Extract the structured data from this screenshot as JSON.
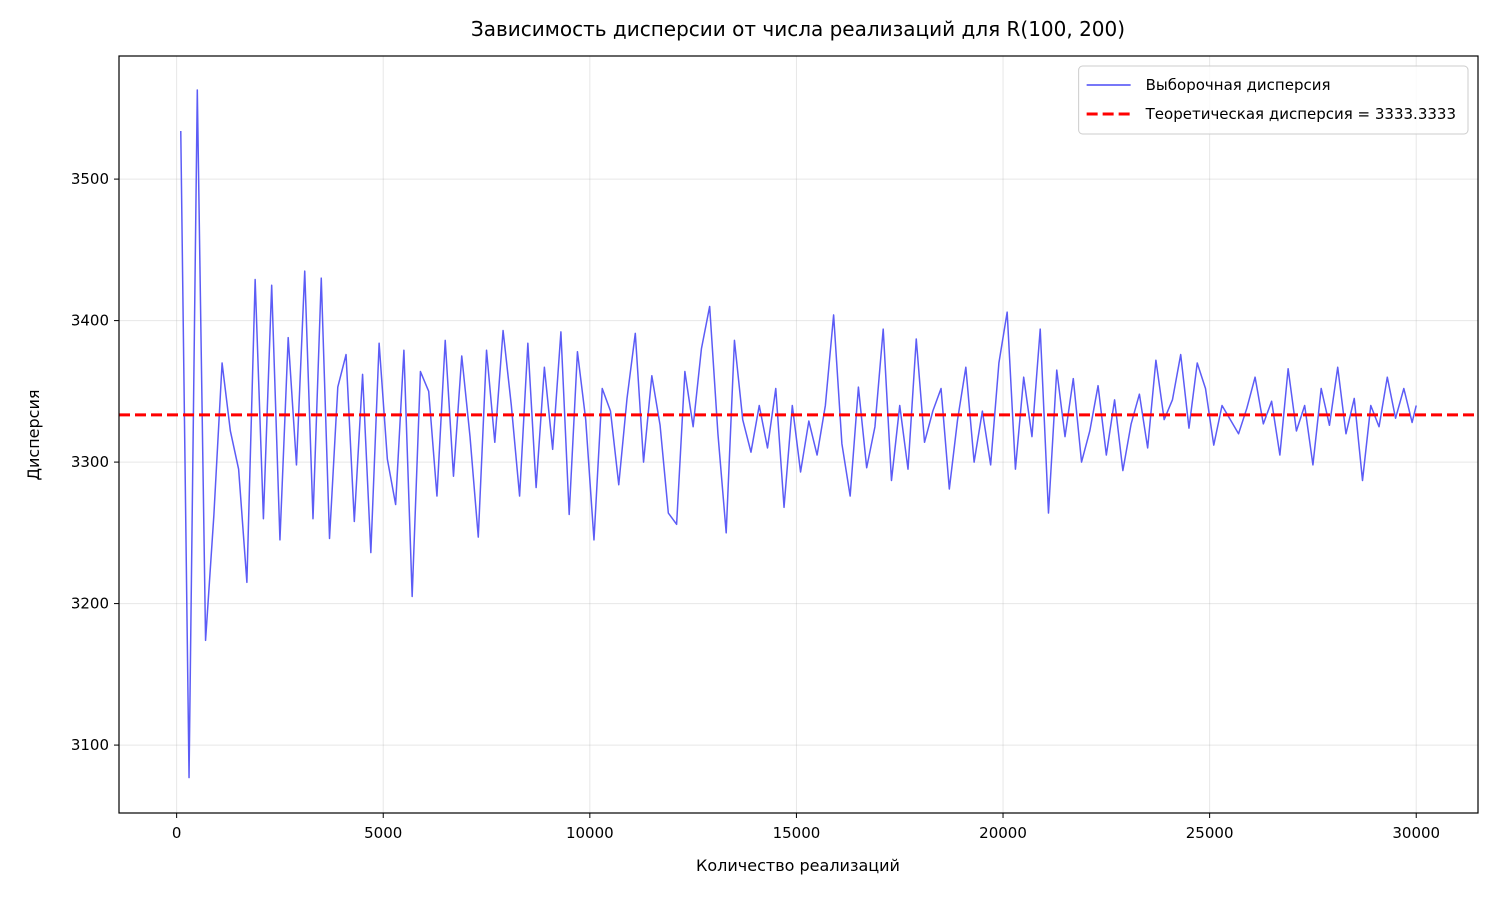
{
  "chart_data": {
    "type": "line",
    "title": "Зависимость дисперсии от числа реализаций для R(100, 200)",
    "x_label": "Количество реализаций",
    "y_label": "Дисперсия",
    "x": [
      100,
      300,
      500,
      700,
      900,
      1100,
      1300,
      1500,
      1700,
      1900,
      2100,
      2300,
      2500,
      2700,
      2900,
      3100,
      3300,
      3500,
      3700,
      3900,
      4100,
      4300,
      4500,
      4700,
      4900,
      5100,
      5300,
      5500,
      5700,
      5900,
      6100,
      6300,
      6500,
      6700,
      6900,
      7100,
      7300,
      7500,
      7700,
      7900,
      8100,
      8300,
      8500,
      8700,
      8900,
      9100,
      9300,
      9500,
      9700,
      9900,
      10100,
      10300,
      10500,
      10700,
      10900,
      11100,
      11300,
      11500,
      11700,
      11900,
      12100,
      12300,
      12500,
      12700,
      12900,
      13100,
      13300,
      13500,
      13700,
      13900,
      14100,
      14300,
      14500,
      14700,
      14900,
      15100,
      15300,
      15500,
      15700,
      15900,
      16100,
      16300,
      16500,
      16700,
      16900,
      17100,
      17300,
      17500,
      17700,
      17900,
      18100,
      18300,
      18500,
      18700,
      18900,
      19100,
      19300,
      19500,
      19700,
      19900,
      20100,
      20300,
      20500,
      20700,
      20900,
      21100,
      21300,
      21500,
      21700,
      21900,
      22100,
      22300,
      22500,
      22700,
      22900,
      23100,
      23300,
      23500,
      23700,
      23900,
      24100,
      24300,
      24500,
      24700,
      24900,
      25100,
      25300,
      25500,
      25700,
      25900,
      26100,
      26300,
      26500,
      26700,
      26900,
      27100,
      27300,
      27500,
      27700,
      27900,
      28100,
      28300,
      28500,
      28700,
      28900,
      29100,
      29300,
      29500,
      29700,
      29900,
      30000
    ],
    "series": [
      {
        "name": "Выборочная дисперсия",
        "color": "#4a4af5",
        "values": [
          3534,
          3077,
          3563,
          3174,
          3262,
          3370,
          3322,
          3295,
          3215,
          3429,
          3260,
          3425,
          3245,
          3388,
          3298,
          3435,
          3260,
          3430,
          3246,
          3353,
          3376,
          3258,
          3362,
          3236,
          3384,
          3302,
          3270,
          3379,
          3205,
          3364,
          3350,
          3276,
          3386,
          3290,
          3375,
          3318,
          3247,
          3379,
          3314,
          3393,
          3340,
          3276,
          3384,
          3282,
          3367,
          3309,
          3392,
          3263,
          3378,
          3330,
          3245,
          3352,
          3336,
          3284,
          3345,
          3391,
          3300,
          3361,
          3326,
          3264,
          3256,
          3364,
          3325,
          3380,
          3410,
          3320,
          3250,
          3386,
          3330,
          3307,
          3340,
          3310,
          3352,
          3268,
          3340,
          3293,
          3329,
          3305,
          3340,
          3404,
          3313,
          3276,
          3353,
          3296,
          3325,
          3394,
          3287,
          3340,
          3295,
          3387,
          3314,
          3336,
          3352,
          3281,
          3330,
          3367,
          3300,
          3336,
          3298,
          3370,
          3406,
          3295,
          3360,
          3318,
          3394,
          3264,
          3365,
          3318,
          3359,
          3300,
          3322,
          3354,
          3305,
          3344,
          3294,
          3327,
          3348,
          3310,
          3372,
          3330,
          3344,
          3376,
          3324,
          3370,
          3352,
          3312,
          3340,
          3330,
          3320,
          3338,
          3360,
          3327,
          3343,
          3305,
          3366,
          3322,
          3340,
          3298,
          3352,
          3326,
          3367,
          3320,
          3345,
          3287,
          3340,
          3325,
          3360,
          3331,
          3352,
          3328,
          3340
        ]
      }
    ],
    "reference_line": {
      "name": "Теоретическая дисперсия = 3333.3333",
      "value": 3333.3333,
      "color": "#ff0000",
      "style": "dashed"
    },
    "xlim": [
      -1395,
      31495
    ],
    "ylim": [
      3052,
      3587
    ],
    "xticks": [
      0,
      5000,
      10000,
      15000,
      20000,
      25000,
      30000
    ],
    "yticks": [
      3100,
      3200,
      3300,
      3400,
      3500
    ],
    "grid": true,
    "legend": "upper right"
  }
}
